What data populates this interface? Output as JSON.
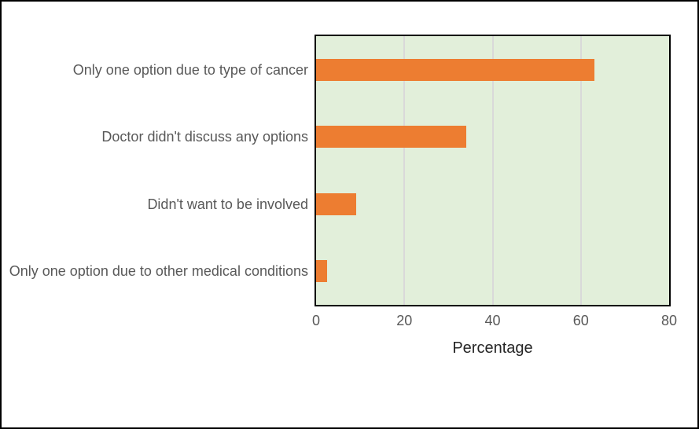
{
  "chart_data": {
    "type": "bar",
    "orientation": "horizontal",
    "categories": [
      "Only one option due to type of cancer",
      "Doctor didn't discuss any options",
      "Didn't want to be involved",
      "Only one option due to other medical conditions"
    ],
    "values": [
      63,
      34,
      9,
      2.5
    ],
    "title": "",
    "xlabel": "Percentage",
    "ylabel": "",
    "xlim": [
      0,
      80
    ],
    "xticks": [
      0,
      20,
      40,
      60,
      80
    ],
    "grid": true,
    "legend": "none",
    "colors": {
      "bar": "#ED7D31",
      "plot_background": "#E2EFDA",
      "gridline": "#D9D9D9",
      "plot_border": "#000000",
      "page_border": "#000000",
      "category_text": "#595959",
      "tick_text": "#595959",
      "axis_title_text": "#262626"
    }
  }
}
